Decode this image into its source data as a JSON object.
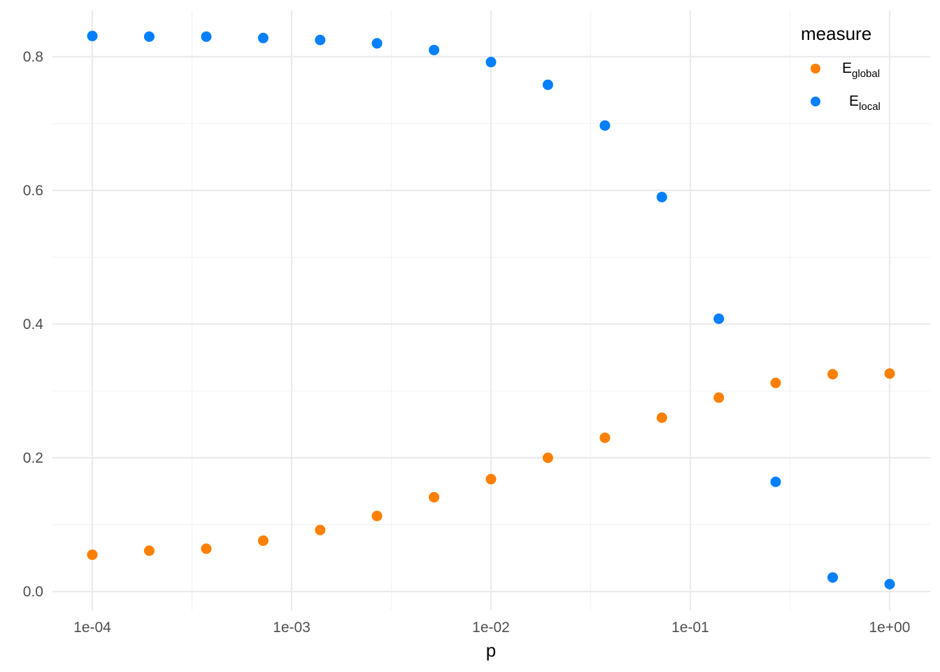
{
  "chart_data": {
    "type": "scatter",
    "title": "",
    "xlabel": "p",
    "ylabel": "",
    "x_scale": "log10",
    "xlim": [
      0.0001,
      1
    ],
    "ylim": [
      0,
      0.85
    ],
    "x_ticks": [
      0.0001,
      0.001,
      0.01,
      0.1,
      1
    ],
    "x_tick_labels": [
      "1e-04",
      "1e-03",
      "1e-02",
      "1e-01",
      "1e+00"
    ],
    "y_ticks": [
      0.0,
      0.2,
      0.4,
      0.6,
      0.8
    ],
    "y_tick_labels": [
      "0.0",
      "0.2",
      "0.4",
      "0.6",
      "0.8"
    ],
    "grid": true,
    "legend": {
      "title": "measure",
      "placement": "top-right",
      "entries": [
        {
          "main": "E",
          "sub": "global",
          "color": "#ff7f00"
        },
        {
          "main": "E",
          "sub": "local",
          "color": "#007fff"
        }
      ]
    },
    "x": [
      0.0001,
      0.000193,
      0.000373,
      0.00072,
      0.00139,
      0.00268,
      0.00518,
      0.01,
      0.0193,
      0.0373,
      0.072,
      0.139,
      0.268,
      0.518,
      1.0
    ],
    "series": [
      {
        "name": "global",
        "color": "#ff7f00",
        "values": [
          0.055,
          0.061,
          0.064,
          0.076,
          0.092,
          0.113,
          0.141,
          0.168,
          0.2,
          0.23,
          0.26,
          0.29,
          0.312,
          0.325,
          0.326
        ]
      },
      {
        "name": "local",
        "color": "#007fff",
        "values": [
          0.831,
          0.83,
          0.83,
          0.828,
          0.825,
          0.82,
          0.81,
          0.792,
          0.758,
          0.697,
          0.59,
          0.408,
          0.164,
          0.021,
          0.011
        ]
      }
    ]
  }
}
